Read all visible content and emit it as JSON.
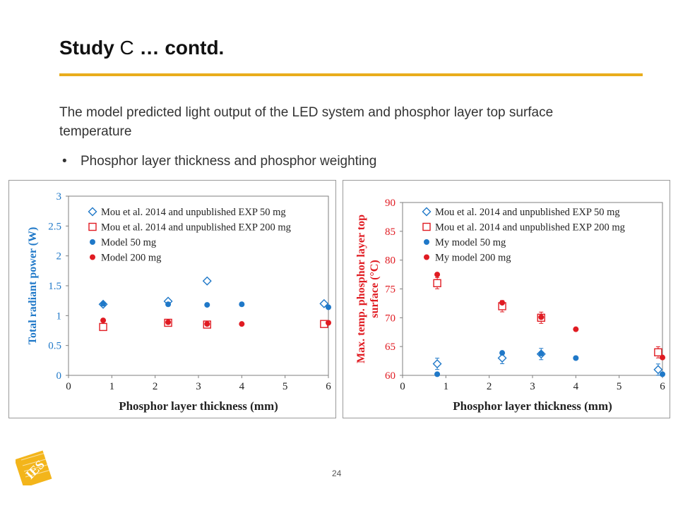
{
  "header": {
    "title_bold": "Study",
    "title_normal": " C ",
    "title_bold2": "… contd."
  },
  "intro_text": "The model predicted light output of the LED system and phosphor layer top surface temperature",
  "bullet": {
    "symbol": "•",
    "text": "Phosphor layer thickness and phosphor weighting"
  },
  "footer": {
    "page_number": "24",
    "logo_text": "IES"
  },
  "colors": {
    "accent": "#e9ad1c",
    "blue": "#1f78c8",
    "red": "#e01b22"
  },
  "chart_data": [
    {
      "type": "scatter",
      "xlabel": "Phosphor layer thickness (mm)",
      "ylabel": "Total radiant power (W)",
      "xlim": [
        0,
        6
      ],
      "ylim": [
        0,
        3
      ],
      "xticks": [
        "0",
        "1",
        "2",
        "3",
        "4",
        "5",
        "6"
      ],
      "yticks": [
        "0",
        "0.5",
        "1",
        "1.5",
        "2",
        "2.5",
        "3"
      ],
      "grid": false,
      "legend_position": "top-left",
      "series": [
        {
          "name": "Mou et al. 2014 and unpublished EXP 50 mg",
          "marker": "diamond-open",
          "color": "#1f78c8",
          "x": [
            0.8,
            2.3,
            3.2,
            5.9
          ],
          "y": [
            1.19,
            1.24,
            1.58,
            1.2
          ]
        },
        {
          "name": "Mou et al. 2014 and unpublished EXP 200 mg",
          "marker": "square-open",
          "color": "#e01b22",
          "x": [
            0.8,
            2.3,
            3.2,
            5.9
          ],
          "y": [
            0.81,
            0.88,
            0.85,
            0.86
          ]
        },
        {
          "name": "Model 50 mg",
          "marker": "circle-filled",
          "color": "#1f78c8",
          "x": [
            0.8,
            2.3,
            3.2,
            4.0,
            6.0
          ],
          "y": [
            1.2,
            1.19,
            1.18,
            1.19,
            1.14
          ]
        },
        {
          "name": "Model 200 mg",
          "marker": "circle-filled",
          "color": "#e01b22",
          "x": [
            0.8,
            2.3,
            3.2,
            4.0,
            6.0
          ],
          "y": [
            0.92,
            0.89,
            0.86,
            0.86,
            0.88
          ]
        }
      ]
    },
    {
      "type": "scatter",
      "xlabel": "Phosphor layer thickness (mm)",
      "ylabel": "Max. temp. phosphor layer top surface (°C)",
      "ylabel_lines": [
        "Max. temp. phosphor layer top",
        "surface (°C)"
      ],
      "xlim": [
        0,
        6
      ],
      "ylim": [
        60,
        90
      ],
      "xticks": [
        "0",
        "1",
        "2",
        "3",
        "4",
        "5",
        "6"
      ],
      "yticks": [
        "60",
        "65",
        "70",
        "75",
        "80",
        "85",
        "90"
      ],
      "grid": false,
      "legend_position": "top-left",
      "series": [
        {
          "name": "Mou et al. 2014 and unpublished EXP 50 mg",
          "marker": "diamond-open",
          "color": "#1f78c8",
          "x": [
            0.8,
            2.3,
            3.2,
            5.9
          ],
          "y": [
            62.0,
            63.0,
            63.7,
            61.0
          ]
        },
        {
          "name": "Mou et al. 2014 and unpublished EXP 200 mg",
          "marker": "square-open",
          "color": "#e01b22",
          "x": [
            0.8,
            2.3,
            3.2,
            5.9
          ],
          "y": [
            76.0,
            72.0,
            70.0,
            64.0
          ]
        },
        {
          "name": "My model 50 mg",
          "marker": "circle-filled",
          "color": "#1f78c8",
          "x": [
            0.8,
            2.3,
            3.2,
            4.0,
            6.0
          ],
          "y": [
            60.2,
            63.9,
            63.8,
            63.0,
            60.2
          ]
        },
        {
          "name": "My model 200 mg",
          "marker": "circle-filled",
          "color": "#e01b22",
          "x": [
            0.8,
            2.3,
            3.2,
            4.0,
            6.0
          ],
          "y": [
            77.5,
            72.6,
            70.1,
            68.0,
            63.1
          ]
        }
      ]
    }
  ]
}
